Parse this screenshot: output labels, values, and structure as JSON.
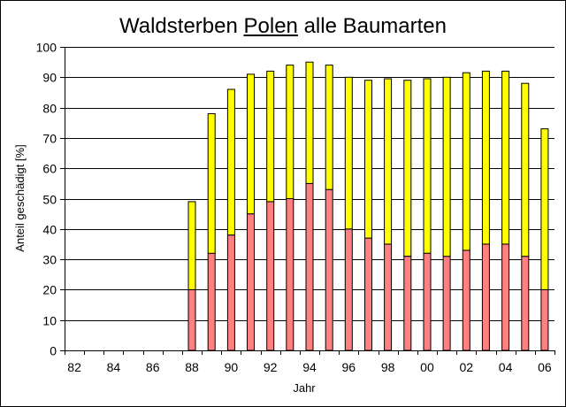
{
  "chart_data": {
    "type": "bar",
    "title": {
      "prefix": "Waldsterben",
      "highlight": "Polen",
      "suffix": "alle Baumarten"
    },
    "xlabel": "Jahr",
    "ylabel": "Anteil geschädigt [%]",
    "ylim": [
      0,
      100
    ],
    "ytick_step": 10,
    "grid": true,
    "stacked": true,
    "x_tick_labels": [
      "82",
      "84",
      "86",
      "88",
      "90",
      "92",
      "94",
      "96",
      "98",
      "00",
      "02",
      "04",
      "06"
    ],
    "categories": [
      "1982",
      "1983",
      "1984",
      "1985",
      "1986",
      "1987",
      "1988",
      "1989",
      "1990",
      "1991",
      "1992",
      "1993",
      "1994",
      "1995",
      "1996",
      "1997",
      "1998",
      "1999",
      "2000",
      "2001",
      "2002",
      "2003",
      "2004",
      "2005",
      "2006"
    ],
    "series": [
      {
        "color": "#ff8080",
        "values": [
          null,
          null,
          null,
          null,
          null,
          null,
          20,
          32,
          38,
          45,
          49,
          50,
          55,
          53,
          40,
          37,
          35,
          31,
          32,
          31,
          33,
          35,
          35,
          31,
          20
        ]
      },
      {
        "color": "#ffff00",
        "values": [
          null,
          null,
          null,
          null,
          null,
          null,
          29,
          46,
          48,
          46,
          43,
          44,
          40,
          41,
          50,
          52,
          54.5,
          58,
          57.5,
          59,
          58.5,
          57,
          57,
          57,
          53
        ]
      }
    ]
  }
}
